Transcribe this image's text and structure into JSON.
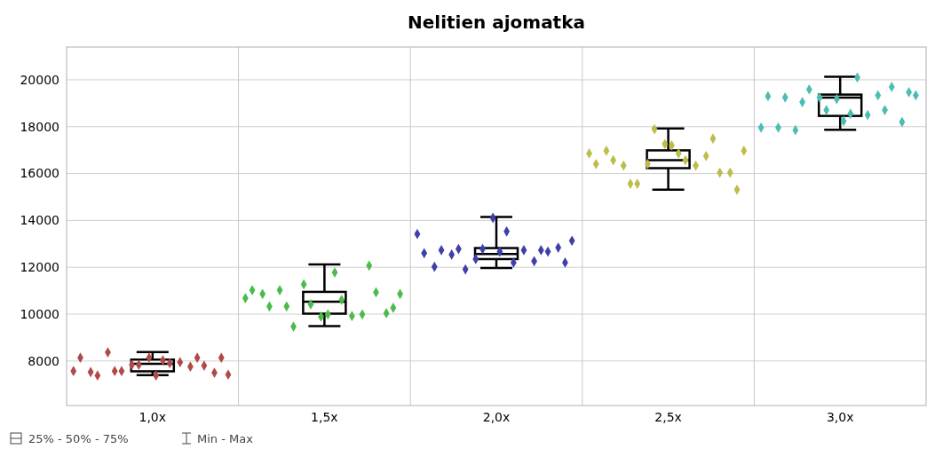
{
  "chart_data": {
    "type": "box",
    "title": "Nelitien ajomatka",
    "x": [
      1.0,
      1.5,
      2.0,
      2.5,
      3.0
    ],
    "boxes": [
      {
        "low": 7400,
        "q1": 7560,
        "median": 7880,
        "q3": 8060,
        "high": 8380
      },
      {
        "low": 9490,
        "q1": 10020,
        "median": 10530,
        "q3": 10950,
        "high": 12120
      },
      {
        "low": 11970,
        "q1": 12350,
        "median": 12570,
        "q3": 12820,
        "high": 14150
      },
      {
        "low": 15310,
        "q1": 16230,
        "median": 16570,
        "q3": 16990,
        "high": 17930
      },
      {
        "low": 17870,
        "q1": 18460,
        "median": 19240,
        "q3": 19370,
        "high": 20130
      }
    ],
    "color": "#000000",
    "series": [
      {
        "type": "scatter",
        "color": "#b04a4a",
        "x": [
          0.77,
          0.79,
          0.82,
          0.84,
          0.87,
          0.89,
          0.91,
          0.94,
          0.96,
          0.99,
          1.01,
          1.03,
          1.05,
          1.08,
          1.11,
          1.13,
          1.15,
          1.18,
          1.2,
          1.22
        ],
        "values": [
          7570,
          8140,
          7530,
          7380,
          8370,
          7570,
          7570,
          7840,
          7840,
          8140,
          7380,
          8030,
          7910,
          7950,
          7760,
          8140,
          7800,
          7500,
          8140,
          7420
        ]
      },
      {
        "type": "scatter",
        "color": "#4cbb4c",
        "x": [
          1.27,
          1.29,
          1.32,
          1.34,
          1.37,
          1.39,
          1.41,
          1.44,
          1.46,
          1.49,
          1.51,
          1.53,
          1.55,
          1.58,
          1.61,
          1.63,
          1.65,
          1.68,
          1.7,
          1.72
        ],
        "values": [
          10680,
          11020,
          10860,
          10330,
          11020,
          10330,
          9470,
          11270,
          10420,
          9890,
          9990,
          11780,
          10610,
          9920,
          9990,
          12070,
          10930,
          10040,
          10270,
          10860
        ]
      },
      {
        "type": "scatter",
        "color": "#3f3fa8",
        "x": [
          1.77,
          1.79,
          1.82,
          1.84,
          1.87,
          1.89,
          1.91,
          1.94,
          1.96,
          1.99,
          2.01,
          2.03,
          2.05,
          2.08,
          2.11,
          2.13,
          2.15,
          2.18,
          2.2,
          2.22
        ],
        "values": [
          13420,
          12600,
          12020,
          12730,
          12540,
          12780,
          11910,
          12350,
          12780,
          14110,
          12670,
          13530,
          12200,
          12730,
          12260,
          12730,
          12670,
          12840,
          12200,
          13130
        ]
      },
      {
        "type": "scatter",
        "color": "#bdbd4a",
        "x": [
          2.27,
          2.29,
          2.32,
          2.34,
          2.37,
          2.39,
          2.41,
          2.44,
          2.46,
          2.49,
          2.51,
          2.53,
          2.55,
          2.58,
          2.61,
          2.63,
          2.65,
          2.68,
          2.7,
          2.72
        ],
        "values": [
          16860,
          16410,
          16970,
          16570,
          16340,
          15560,
          15560,
          16410,
          17890,
          17260,
          17200,
          16860,
          16570,
          16340,
          16750,
          17490,
          16040,
          16040,
          15310,
          16970
        ]
      },
      {
        "type": "scatter",
        "color": "#4bbdb4",
        "x": [
          2.77,
          2.79,
          2.82,
          2.84,
          2.87,
          2.89,
          2.91,
          2.94,
          2.96,
          2.99,
          3.01,
          3.03,
          3.05,
          3.08,
          3.11,
          3.13,
          3.15,
          3.18,
          3.2,
          3.22
        ],
        "values": [
          17960,
          19300,
          17960,
          19250,
          17850,
          19050,
          19590,
          19250,
          18710,
          19180,
          18240,
          18550,
          20100,
          18500,
          19340,
          18710,
          19700,
          18200,
          19470,
          19340
        ]
      }
    ],
    "marker": "diamond",
    "xlim": [
      0.75,
      3.25
    ],
    "xticks": [
      {
        "value": 1.0,
        "label": "1,0x"
      },
      {
        "value": 1.5,
        "label": "1,5x"
      },
      {
        "value": 2.0,
        "label": "2,0x"
      },
      {
        "value": 2.5,
        "label": "2,5x"
      },
      {
        "value": 3.0,
        "label": "3,0x"
      }
    ],
    "ylim": [
      6100,
      21400
    ],
    "yticks": [
      8000,
      10000,
      12000,
      14000,
      16000,
      18000,
      20000
    ],
    "grid": "y",
    "ref_lines": [
      {
        "axis": "x",
        "value": 1.25,
        "color": "#c8c8c8"
      },
      {
        "axis": "x",
        "value": 1.75,
        "color": "#c8c8c8"
      },
      {
        "axis": "x",
        "value": 2.25,
        "color": "#c8c8c8"
      },
      {
        "axis": "x",
        "value": 2.75,
        "color": "#c8c8c8"
      }
    ],
    "annotations": [
      "25% - 50% - 75%",
      "Min - Max"
    ]
  }
}
